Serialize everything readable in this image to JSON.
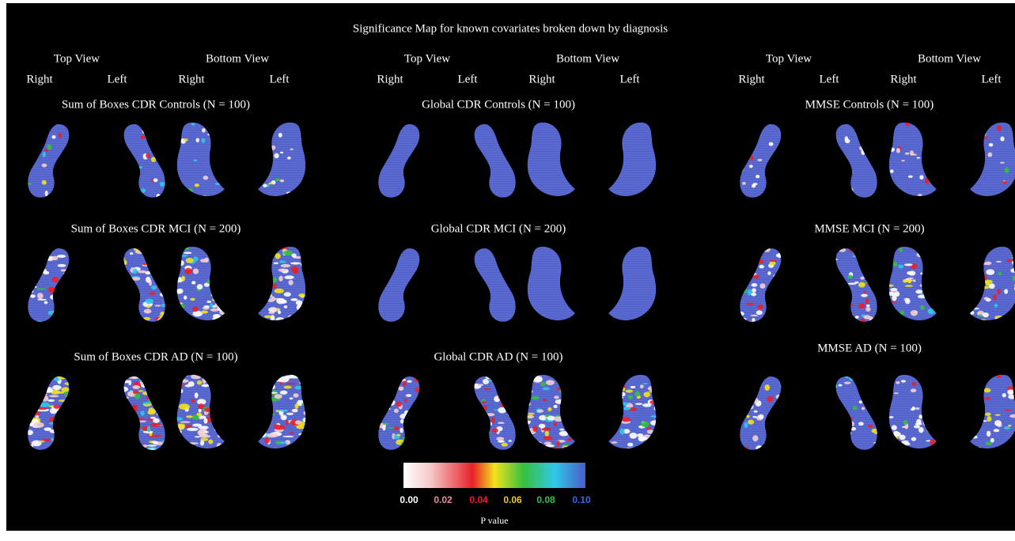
{
  "title": "Significance Map for known covariates broken down by diagnosis",
  "groups": [
    {
      "views": [
        "Top View",
        "Bottom View"
      ],
      "sides": [
        "Right",
        "Left",
        "Right",
        "Left"
      ],
      "panels": [
        "Sum of Boxes CDR Controls (N = 100)",
        "Sum of Boxes CDR MCI (N = 200)",
        "Sum of Boxes CDR AD (N = 100)"
      ]
    },
    {
      "views": [
        "Top View",
        "Bottom View"
      ],
      "sides": [
        "Right",
        "Left",
        "Right",
        "Left"
      ],
      "panels": [
        "Global CDR Controls (N = 100)",
        "Global CDR MCI (N = 200)",
        "Global CDR AD (N = 100)"
      ]
    },
    {
      "views": [
        "Top View",
        "Bottom View"
      ],
      "sides": [
        "Right",
        "Left",
        "Right",
        "Left"
      ],
      "panels": [
        "MMSE Controls (N = 100)",
        "MMSE MCI (N = 200)",
        "MMSE AD (N = 100)"
      ]
    }
  ],
  "colorbar": {
    "ticks": [
      "0.00",
      "0.02",
      "0.04",
      "0.06",
      "0.08",
      "0.10"
    ],
    "label": "P value"
  }
}
